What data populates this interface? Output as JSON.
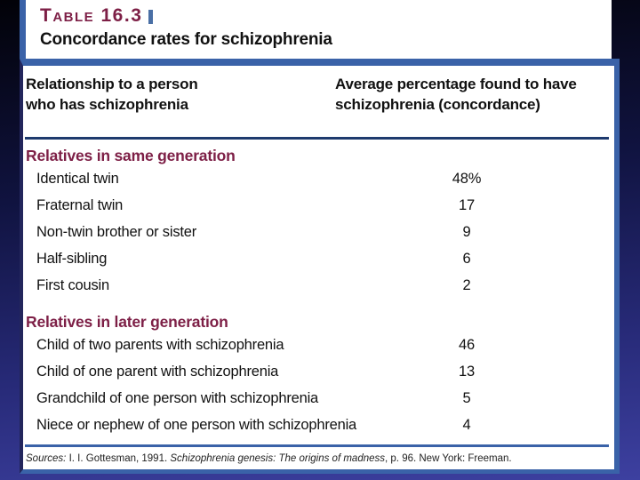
{
  "colors": {
    "maroon": "#7d1f46",
    "steel_blue": "#3a62a8",
    "navy_rule": "#1e3a6e",
    "background_top": "#020208",
    "background_bottom": "#3d40a0"
  },
  "icons": {
    "title_separator": "vertical-bar-icon"
  },
  "title_block": {
    "label": "Table 16.3",
    "subtitle": "Concordance rates for schizophrenia"
  },
  "table": {
    "header": {
      "left_line1": "Relationship to a person",
      "left_line2": "who has schizophrenia",
      "right_line1": "Average percentage found to have",
      "right_line2": "schizophrenia (concordance)"
    },
    "sections": [
      {
        "title": "Relatives in same generation",
        "rows": [
          {
            "label": "Identical twin",
            "value": "48%"
          },
          {
            "label": "Fraternal twin",
            "value": "17"
          },
          {
            "label": "Non-twin brother or sister",
            "value": "9"
          },
          {
            "label": "Half-sibling",
            "value": "6"
          },
          {
            "label": "First cousin",
            "value": "2"
          }
        ]
      },
      {
        "title": "Relatives in later generation",
        "rows": [
          {
            "label": "Child of two parents with schizophrenia",
            "value": "46"
          },
          {
            "label": "Child of one parent with schizophrenia",
            "value": "13"
          },
          {
            "label": "Grandchild of one person with schizophrenia",
            "value": "5"
          },
          {
            "label": "Niece or nephew of one person with schizophrenia",
            "value": "4"
          }
        ]
      }
    ],
    "sources": {
      "label_italic": "Sources:",
      "part1": " I. I. Gottesman, 1991. ",
      "book_italic": "Schizophrenia genesis: The origins of madness",
      "part2": ", p. 96. New York: Freeman."
    }
  }
}
